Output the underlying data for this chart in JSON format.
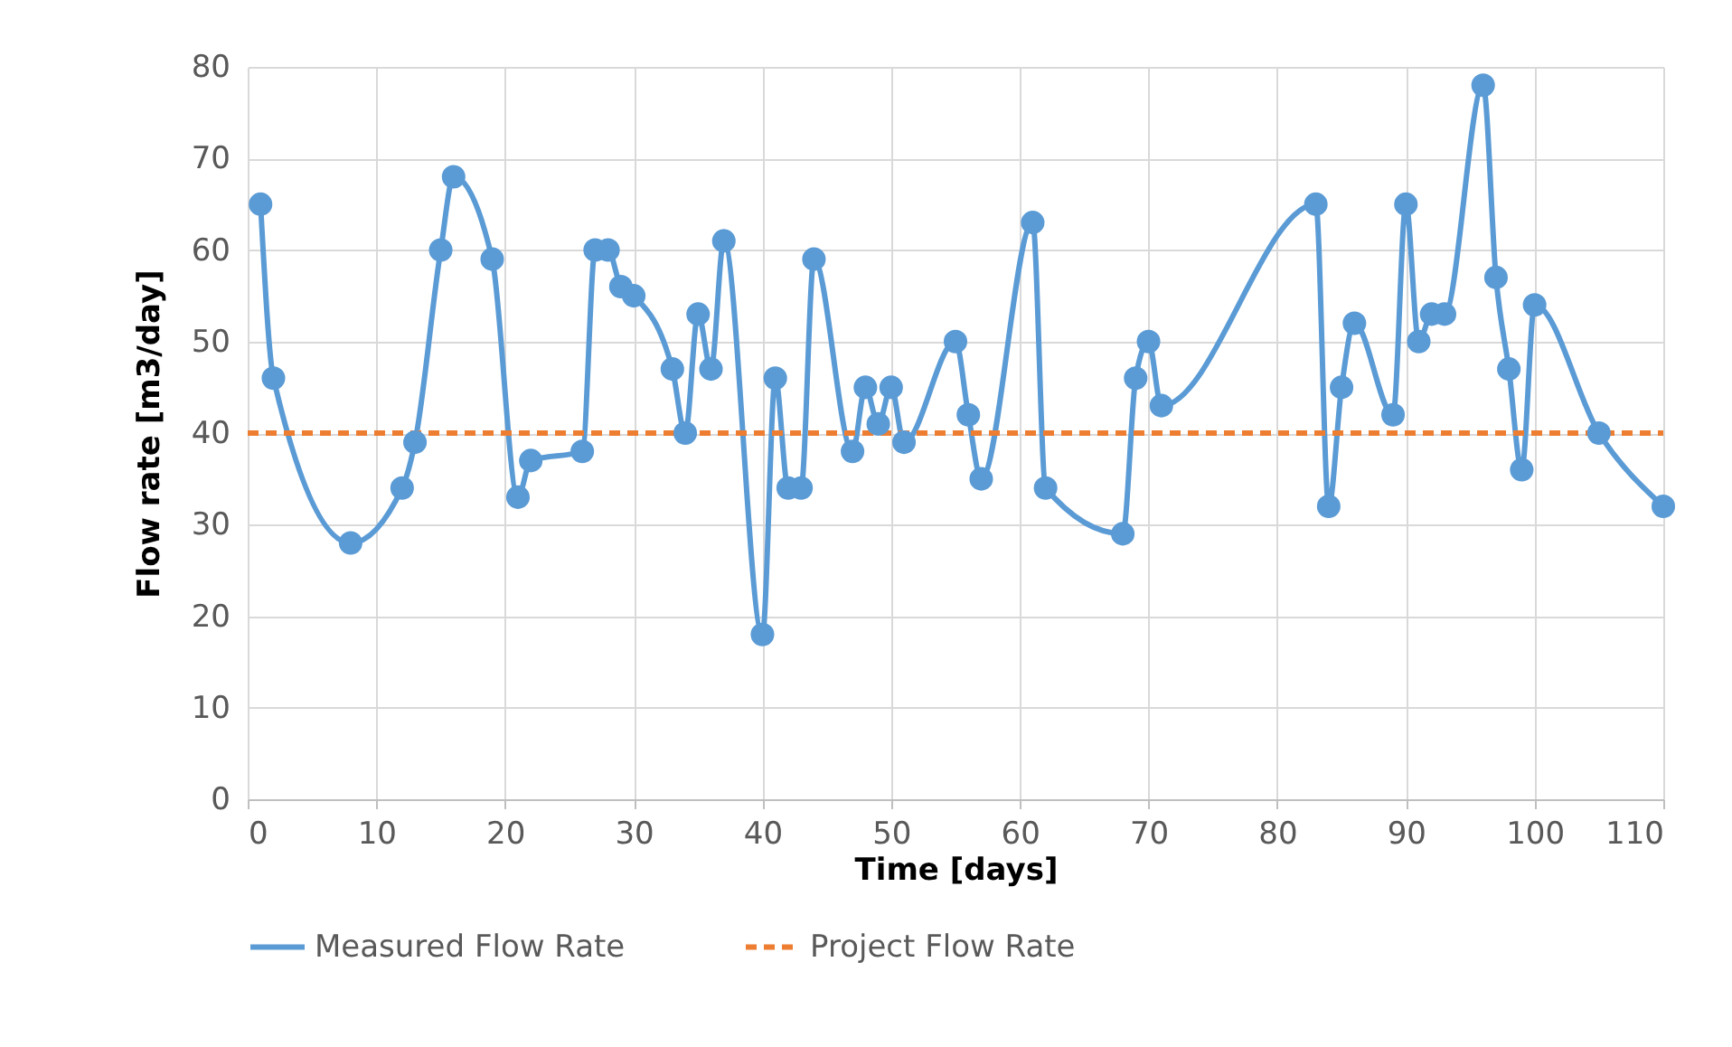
{
  "chart_data": {
    "type": "line",
    "xlabel": "Time [days]",
    "ylabel": "Flow rate [m3/day]",
    "xlim": [
      0,
      110
    ],
    "xticks": [
      0,
      10,
      20,
      30,
      40,
      50,
      60,
      70,
      80,
      90,
      100,
      110
    ],
    "ylim": [
      0,
      80
    ],
    "yticks": [
      0,
      10,
      20,
      30,
      40,
      50,
      60,
      70,
      80
    ],
    "grid": true,
    "legend": "bottom",
    "series": [
      {
        "name": "Measured Flow Rate",
        "color": "#5b9bd5",
        "marker": "circle",
        "line_style": "solid",
        "x": [
          1,
          2,
          8,
          12,
          13,
          15,
          16,
          19,
          21,
          22,
          26,
          27,
          28,
          29,
          30,
          33,
          34,
          35,
          36,
          37,
          40,
          41,
          42,
          43,
          44,
          47,
          48,
          49,
          50,
          51,
          55,
          56,
          57,
          61,
          62,
          68,
          69,
          70,
          71,
          83,
          84,
          85,
          86,
          89,
          90,
          91,
          92,
          93,
          96,
          97,
          98,
          99,
          100,
          105,
          110
        ],
        "values": [
          65,
          46,
          28,
          34,
          39,
          60,
          68,
          59,
          33,
          37,
          38,
          60,
          60,
          56,
          55,
          47,
          40,
          53,
          47,
          61,
          18,
          46,
          34,
          34,
          59,
          38,
          45,
          41,
          45,
          39,
          50,
          42,
          35,
          63,
          34,
          29,
          46,
          50,
          43,
          65,
          32,
          45,
          52,
          42,
          65,
          50,
          53,
          53,
          78,
          57,
          47,
          36,
          54,
          40,
          32
        ]
      },
      {
        "name": "Project Flow Rate",
        "color": "#ed7d31",
        "marker": "none",
        "line_style": "dashed",
        "x": [
          0,
          110
        ],
        "values": [
          40,
          40
        ]
      }
    ]
  }
}
